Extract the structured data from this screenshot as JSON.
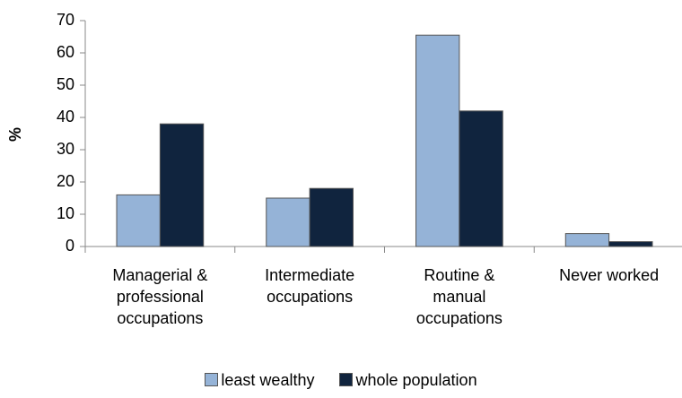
{
  "chart_data": {
    "type": "bar",
    "y_label": "%",
    "categories": [
      "Managerial & professional occupations",
      "Intermediate occupations",
      "Routine & manual occupations",
      "Never worked"
    ],
    "series": [
      {
        "name": "least wealthy",
        "color": "#95b3d7",
        "values": [
          16,
          15,
          65.5,
          4
        ]
      },
      {
        "name": "whole population",
        "color": "#10243e",
        "values": [
          38,
          18,
          42,
          1.5
        ]
      }
    ],
    "ylim": [
      0,
      70
    ],
    "yticks": [
      0,
      10,
      20,
      30,
      40,
      50,
      60,
      70
    ],
    "legend": "bottom"
  }
}
